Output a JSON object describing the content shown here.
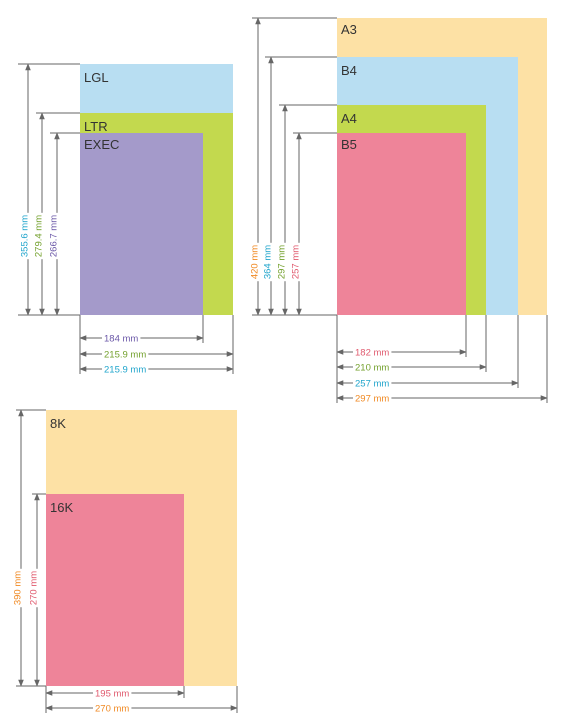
{
  "colors": {
    "lgl": "#b8def2",
    "ltr": "#c3d94e",
    "exec": "#a49aca",
    "a3": "#fde1a5",
    "b4": "#b8def2",
    "a4": "#c3d94e",
    "b5": "#ee8499",
    "k8": "#fde1a5",
    "k16": "#ee8499",
    "line": "#666666",
    "text_purple": "#6b58a8",
    "text_green": "#74a12e",
    "text_cyan": "#20a5cc",
    "text_orange": "#f08a24",
    "text_red": "#e05a6e"
  },
  "groups": [
    {
      "name": "us",
      "papers": [
        {
          "id": "lgl",
          "label": "LGL",
          "color": "lgl"
        },
        {
          "id": "ltr",
          "label": "LTR",
          "color": "ltr"
        },
        {
          "id": "exec",
          "label": "EXEC",
          "color": "exec"
        }
      ],
      "widths": [
        {
          "id": "exec-w",
          "text": "184 mm",
          "color": "text_purple"
        },
        {
          "id": "ltr-w",
          "text": "215.9 mm",
          "color": "text_green"
        },
        {
          "id": "lgl-w",
          "text": "215.9 mm",
          "color": "text_cyan"
        }
      ],
      "heights": [
        {
          "id": "lgl-h",
          "text": "355.6 mm",
          "color": "text_cyan"
        },
        {
          "id": "ltr-h",
          "text": "279.4 mm",
          "color": "text_green"
        },
        {
          "id": "exec-h",
          "text": "266.7 mm",
          "color": "text_purple"
        }
      ]
    },
    {
      "name": "iso",
      "papers": [
        {
          "id": "a3",
          "label": "A3",
          "color": "a3"
        },
        {
          "id": "b4",
          "label": "B4",
          "color": "b4"
        },
        {
          "id": "a4",
          "label": "A4",
          "color": "a4"
        },
        {
          "id": "b5",
          "label": "B5",
          "color": "b5"
        }
      ],
      "widths": [
        {
          "id": "b5-w",
          "text": "182 mm",
          "color": "text_red"
        },
        {
          "id": "a4-w",
          "text": "210 mm",
          "color": "text_green"
        },
        {
          "id": "b4-w",
          "text": "257 mm",
          "color": "text_cyan"
        },
        {
          "id": "a3-w",
          "text": "297 mm",
          "color": "text_orange"
        }
      ],
      "heights": [
        {
          "id": "a3-h",
          "text": "420 mm",
          "color": "text_orange"
        },
        {
          "id": "b4-h",
          "text": "364 mm",
          "color": "text_cyan"
        },
        {
          "id": "a4-h",
          "text": "297 mm",
          "color": "text_green"
        },
        {
          "id": "b5-h",
          "text": "257 mm",
          "color": "text_red"
        }
      ]
    },
    {
      "name": "k",
      "papers": [
        {
          "id": "k8",
          "label": "8K",
          "color": "k8"
        },
        {
          "id": "k16",
          "label": "16K",
          "color": "k16"
        }
      ],
      "widths": [
        {
          "id": "k16-w",
          "text": "195 mm",
          "color": "text_red"
        },
        {
          "id": "k8-w",
          "text": "270 mm",
          "color": "text_orange"
        }
      ],
      "heights": [
        {
          "id": "k8-h",
          "text": "390 mm",
          "color": "text_orange"
        },
        {
          "id": "k16-h",
          "text": "270 mm",
          "color": "text_red"
        }
      ]
    }
  ]
}
